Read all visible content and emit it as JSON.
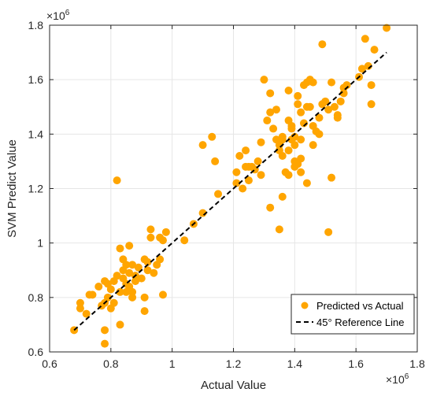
{
  "chart_data": {
    "type": "scatter",
    "xlabel": "Actual Value",
    "ylabel": "SVM Predict Value",
    "x_exponent_base": "×10",
    "x_exponent_power": "6",
    "y_exponent_base": "×10",
    "y_exponent_power": "6",
    "xlim": [
      0.6,
      1.8
    ],
    "ylim": [
      0.6,
      1.8
    ],
    "x_ticks": [
      0.6,
      0.8,
      1.0,
      1.2,
      1.4,
      1.6,
      1.8
    ],
    "y_ticks": [
      0.6,
      0.8,
      1.0,
      1.2,
      1.4,
      1.6,
      1.8
    ],
    "x_tick_labels": [
      "0.6",
      "0.8",
      "1",
      "1.2",
      "1.4",
      "1.6",
      "1.8"
    ],
    "y_tick_labels": [
      "0.6",
      "0.8",
      "1",
      "1.2",
      "1.4",
      "1.6",
      "1.8"
    ],
    "grid": true,
    "legend_position": "bottom-right",
    "marker_color": "#FFA500",
    "line_color": "#000000",
    "series": [
      {
        "name": "Predicted vs Actual",
        "kind": "points",
        "points": [
          [
            0.68,
            0.68
          ],
          [
            0.7,
            0.76
          ],
          [
            0.7,
            0.78
          ],
          [
            0.72,
            0.74
          ],
          [
            0.73,
            0.81
          ],
          [
            0.74,
            0.81
          ],
          [
            0.76,
            0.84
          ],
          [
            0.77,
            0.77
          ],
          [
            0.78,
            0.86
          ],
          [
            0.78,
            0.78
          ],
          [
            0.78,
            0.68
          ],
          [
            0.78,
            0.63
          ],
          [
            0.79,
            0.85
          ],
          [
            0.79,
            0.8
          ],
          [
            0.8,
            0.83
          ],
          [
            0.8,
            0.76
          ],
          [
            0.81,
            0.86
          ],
          [
            0.81,
            0.78
          ],
          [
            0.82,
            0.88
          ],
          [
            0.82,
            1.23
          ],
          [
            0.83,
            0.82
          ],
          [
            0.83,
            0.7
          ],
          [
            0.83,
            0.98
          ],
          [
            0.84,
            0.9
          ],
          [
            0.84,
            0.94
          ],
          [
            0.84,
            0.87
          ],
          [
            0.85,
            0.85
          ],
          [
            0.85,
            0.92
          ],
          [
            0.85,
            0.82
          ],
          [
            0.86,
            0.99
          ],
          [
            0.86,
            0.84
          ],
          [
            0.86,
            0.89
          ],
          [
            0.87,
            0.82
          ],
          [
            0.87,
            0.8
          ],
          [
            0.87,
            0.92
          ],
          [
            0.88,
            0.88
          ],
          [
            0.88,
            0.86
          ],
          [
            0.89,
            0.91
          ],
          [
            0.9,
            0.87
          ],
          [
            0.91,
            0.94
          ],
          [
            0.91,
            0.8
          ],
          [
            0.91,
            0.75
          ],
          [
            0.92,
            0.9
          ],
          [
            0.92,
            0.93
          ],
          [
            0.93,
            1.05
          ],
          [
            0.93,
            1.02
          ],
          [
            0.94,
            0.89
          ],
          [
            0.95,
            0.92
          ],
          [
            0.96,
            0.94
          ],
          [
            0.96,
            1.02
          ],
          [
            0.97,
            0.81
          ],
          [
            0.98,
            1.04
          ],
          [
            0.97,
            1.01
          ],
          [
            1.04,
            1.01
          ],
          [
            1.07,
            1.07
          ],
          [
            1.1,
            1.11
          ],
          [
            1.1,
            1.36
          ],
          [
            1.13,
            1.39
          ],
          [
            1.14,
            1.3
          ],
          [
            1.15,
            1.18
          ],
          [
            1.21,
            1.22
          ],
          [
            1.21,
            1.26
          ],
          [
            1.22,
            1.32
          ],
          [
            1.23,
            1.2
          ],
          [
            1.24,
            1.28
          ],
          [
            1.24,
            1.34
          ],
          [
            1.25,
            1.23
          ],
          [
            1.25,
            1.28
          ],
          [
            1.26,
            1.28
          ],
          [
            1.27,
            1.27
          ],
          [
            1.28,
            1.3
          ],
          [
            1.29,
            1.37
          ],
          [
            1.29,
            1.25
          ],
          [
            1.3,
            1.6
          ],
          [
            1.31,
            1.45
          ],
          [
            1.32,
            1.55
          ],
          [
            1.32,
            1.13
          ],
          [
            1.32,
            1.48
          ],
          [
            1.33,
            1.42
          ],
          [
            1.34,
            1.38
          ],
          [
            1.34,
            1.49
          ],
          [
            1.35,
            1.05
          ],
          [
            1.35,
            1.36
          ],
          [
            1.35,
            1.34
          ],
          [
            1.36,
            1.17
          ],
          [
            1.36,
            1.39
          ],
          [
            1.36,
            1.38
          ],
          [
            1.36,
            1.32
          ],
          [
            1.37,
            1.26
          ],
          [
            1.38,
            1.25
          ],
          [
            1.38,
            1.56
          ],
          [
            1.38,
            1.34
          ],
          [
            1.38,
            1.45
          ],
          [
            1.39,
            1.38
          ],
          [
            1.39,
            1.43
          ],
          [
            1.39,
            1.42
          ],
          [
            1.4,
            1.3
          ],
          [
            1.4,
            1.36
          ],
          [
            1.4,
            1.39
          ],
          [
            1.4,
            1.28
          ],
          [
            1.41,
            1.29
          ],
          [
            1.41,
            1.51
          ],
          [
            1.41,
            1.54
          ],
          [
            1.42,
            1.48
          ],
          [
            1.42,
            1.26
          ],
          [
            1.42,
            1.38
          ],
          [
            1.42,
            1.31
          ],
          [
            1.43,
            1.44
          ],
          [
            1.43,
            1.58
          ],
          [
            1.44,
            1.5
          ],
          [
            1.44,
            1.22
          ],
          [
            1.44,
            1.59
          ],
          [
            1.45,
            1.6
          ],
          [
            1.45,
            1.5
          ],
          [
            1.46,
            1.59
          ],
          [
            1.46,
            1.36
          ],
          [
            1.46,
            1.43
          ],
          [
            1.47,
            1.41
          ],
          [
            1.48,
            1.4
          ],
          [
            1.48,
            1.46
          ],
          [
            1.49,
            1.51
          ],
          [
            1.49,
            1.73
          ],
          [
            1.5,
            1.52
          ],
          [
            1.51,
            1.04
          ],
          [
            1.51,
            1.49
          ],
          [
            1.52,
            1.59
          ],
          [
            1.52,
            1.24
          ],
          [
            1.53,
            1.5
          ],
          [
            1.54,
            1.46
          ],
          [
            1.54,
            1.47
          ],
          [
            1.55,
            1.52
          ],
          [
            1.56,
            1.55
          ],
          [
            1.56,
            1.57
          ],
          [
            1.57,
            1.58
          ],
          [
            1.61,
            1.61
          ],
          [
            1.62,
            1.64
          ],
          [
            1.63,
            1.75
          ],
          [
            1.64,
            1.65
          ],
          [
            1.65,
            1.51
          ],
          [
            1.65,
            1.58
          ],
          [
            1.66,
            1.71
          ],
          [
            1.7,
            1.79
          ]
        ]
      },
      {
        "name": "45° Reference Line",
        "kind": "line",
        "points": [
          [
            0.68,
            0.68
          ],
          [
            1.7,
            1.7
          ]
        ]
      }
    ]
  }
}
